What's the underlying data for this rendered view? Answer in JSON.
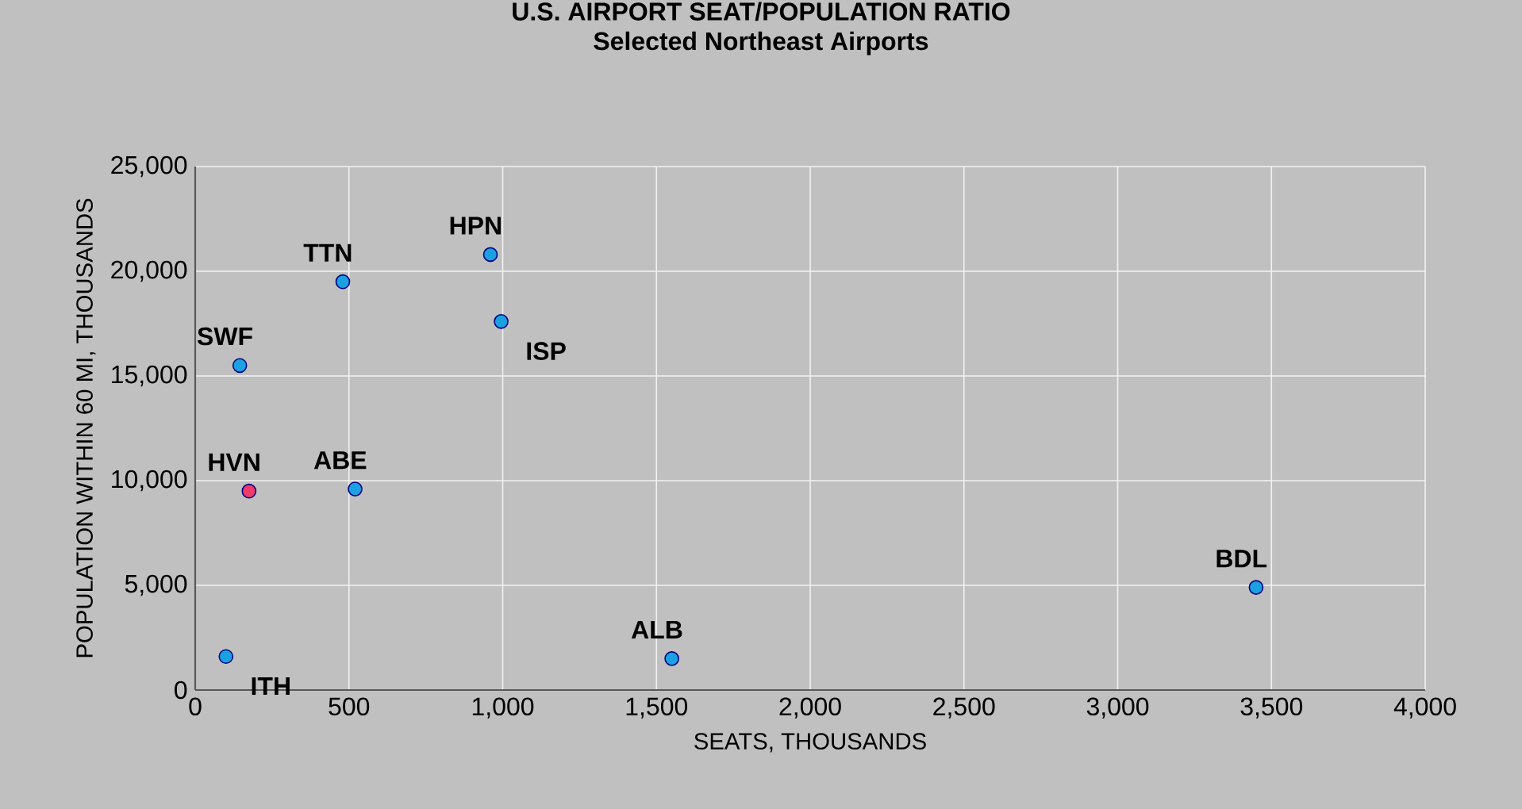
{
  "chart_data": {
    "type": "scatter",
    "title": "U.S. AIRPORT SEAT/POPULATION RATIO",
    "subtitle": "Selected Northeast Airports",
    "xlabel": "SEATS, THOUSANDS",
    "ylabel": "POPULATION WITHIN 60 MI, THOUSANDS",
    "x": [
      100,
      175,
      145,
      480,
      520,
      960,
      995,
      1550,
      3450
    ],
    "values": [
      1600,
      9500,
      15500,
      19500,
      9600,
      20800,
      17600,
      1500,
      4900
    ],
    "colors": [
      "#1ba1e2",
      "#ef3a6a",
      "#1ba1e2",
      "#1ba1e2",
      "#1ba1e2",
      "#1ba1e2",
      "#1ba1e2",
      "#1ba1e2",
      "#1ba1e2"
    ],
    "marker": "circle",
    "grid": true,
    "xlim": [
      0,
      4000
    ],
    "ylim": [
      0,
      25000
    ],
    "xticks": [
      0,
      500,
      {
        "value": 1000,
        "label": "1,000"
      },
      {
        "value": 1500,
        "label": "1,500"
      },
      {
        "value": 2000,
        "label": "2,000"
      },
      {
        "value": 2500,
        "label": "2,500"
      },
      {
        "value": 3000,
        "label": "3,000"
      },
      {
        "value": 3500,
        "label": "3,500"
      },
      {
        "value": 4000,
        "label": "4,000"
      }
    ],
    "yticks": [
      0,
      {
        "value": 5000,
        "label": "5,000"
      },
      {
        "value": 10000,
        "label": "10,000"
      },
      {
        "value": 15000,
        "label": "15,000"
      },
      {
        "value": 20000,
        "label": "20,000"
      },
      {
        "value": 25000,
        "label": "25,000"
      }
    ],
    "annotations": [
      {
        "text": "ITH",
        "x": 100,
        "y": 1600
      },
      {
        "text": "HVN",
        "x": 175,
        "y": 9500
      },
      {
        "text": "SWF",
        "x": 145,
        "y": 15500
      },
      {
        "text": "TTN",
        "x": 480,
        "y": 19500
      },
      {
        "text": "ABE",
        "x": 520,
        "y": 9600
      },
      {
        "text": "HPN",
        "x": 960,
        "y": 20800
      },
      {
        "text": "ISP",
        "x": 995,
        "y": 17600
      },
      {
        "text": "ALB",
        "x": 1550,
        "y": 1500
      },
      {
        "text": "BDL",
        "x": 3450,
        "y": 4900
      }
    ]
  }
}
